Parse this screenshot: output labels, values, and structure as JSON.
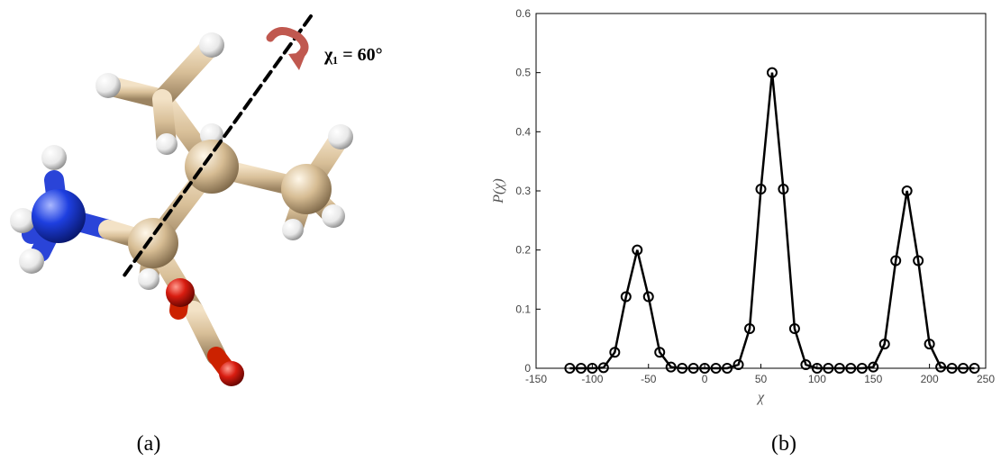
{
  "panel_a": {
    "annotation": "χ₁ = 60°",
    "caption": "(a)"
  },
  "chart_data": {
    "type": "line",
    "caption": "(b)",
    "xlabel": "χ",
    "ylabel": "P(χ)",
    "x": [
      -120,
      -110,
      -100,
      -90,
      -80,
      -70,
      -60,
      -50,
      -40,
      -30,
      -20,
      -10,
      0,
      10,
      20,
      30,
      40,
      50,
      60,
      70,
      80,
      90,
      100,
      110,
      120,
      130,
      140,
      150,
      160,
      170,
      180,
      190,
      200,
      210,
      220,
      230,
      240
    ],
    "series": [
      {
        "color": "#000000",
        "values": [
          0,
          0,
          0,
          0.001,
          0.027,
          0.121,
          0.2,
          0.121,
          0.027,
          0.002,
          0,
          0,
          0,
          0,
          0,
          0.006,
          0.067,
          0.303,
          0.5,
          0.303,
          0.067,
          0.006,
          0,
          0,
          0,
          0,
          0,
          0.002,
          0.041,
          0.182,
          0.3,
          0.182,
          0.041,
          0.002,
          0,
          0,
          0
        ]
      }
    ],
    "xlim": [
      -150,
      250
    ],
    "xticks": [
      -150,
      -100,
      -50,
      0,
      50,
      100,
      150,
      200,
      250
    ],
    "ylim": [
      0,
      0.6
    ],
    "yticks": [
      0,
      0.1,
      0.2,
      0.3,
      0.4,
      0.5,
      0.6
    ],
    "grid": false
  }
}
